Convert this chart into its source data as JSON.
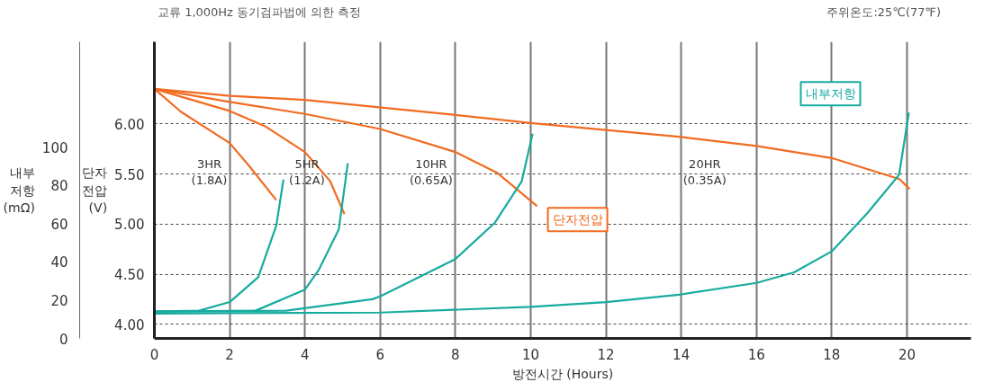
{
  "chart_data": {
    "type": "line",
    "title": "교류 1,000Hz 동기검파법에 의한 측정",
    "subtitle": "주위온도:25℃(77℉)",
    "xlabel": "방전시간 (Hours)",
    "ylabel": "단자\n전압\n(V)",
    "y2label": "내부\n저항\n(mΩ)",
    "xlim": [
      0,
      21.7
    ],
    "xticks": [
      0,
      2,
      4,
      6,
      8,
      10,
      12,
      14,
      16,
      18,
      20
    ],
    "ylim": [
      3.86,
      6.82
    ],
    "yticks": [
      {
        "value": 4,
        "label": "4.00"
      },
      {
        "value": 4.5,
        "label": "4.50"
      },
      {
        "value": 5,
        "label": "5.00"
      },
      {
        "value": 5.5,
        "label": "5.50"
      },
      {
        "value": 6,
        "label": "6.00"
      }
    ],
    "y2lim": [
      0,
      155
    ],
    "y2ticks": [
      0,
      20,
      40,
      60,
      80,
      100
    ],
    "grid": true,
    "line_style": "solid",
    "marker": "none",
    "series": [
      {
        "color": "#f26b21",
        "x": [
          0,
          0.71,
          2,
          2.52,
          3.24
        ],
        "values": [
          6.35,
          6.12,
          5.81,
          5.58,
          5.24
        ]
      },
      {
        "color": "#f26b21",
        "x": [
          0,
          2,
          2.93,
          4,
          4.67,
          5.05
        ],
        "values": [
          6.35,
          6.13,
          5.98,
          5.72,
          5.43,
          5.1
        ]
      },
      {
        "name": "단자전압",
        "color": "#f26b21",
        "x": [
          0,
          2,
          4,
          6,
          8,
          9.12,
          10.17
        ],
        "values": [
          6.35,
          6.22,
          6.1,
          5.95,
          5.72,
          5.51,
          5.18
        ]
      },
      {
        "color": "#f26b21",
        "x": [
          0,
          2,
          4,
          8,
          10,
          12,
          14,
          16,
          18,
          19.8,
          20.07
        ],
        "values": [
          6.35,
          6.28,
          6.24,
          6.09,
          6.01,
          5.94,
          5.87,
          5.78,
          5.66,
          5.45,
          5.35
        ]
      },
      {
        "color": "#17ab9f",
        "axis": "y2",
        "x": [
          0,
          1.19,
          2,
          2.76,
          3.24,
          3.43
        ],
        "values": [
          14,
          14.5,
          19,
          32,
          59,
          83
        ]
      },
      {
        "color": "#17ab9f",
        "axis": "y2",
        "x": [
          0,
          2.69,
          4,
          4.36,
          4.9,
          5.14
        ],
        "values": [
          14,
          14.5,
          25.5,
          35.5,
          57,
          91.5
        ]
      },
      {
        "color": "#17ab9f",
        "axis": "y2",
        "x": [
          0,
          3.5,
          5.79,
          6,
          8,
          9.05,
          9.76,
          10.05
        ],
        "values": [
          14,
          14.5,
          20.5,
          22,
          41.5,
          60.5,
          82,
          107
        ]
      },
      {
        "name": "내부저항",
        "color": "#17ab9f",
        "axis": "y2",
        "x": [
          0,
          6,
          10,
          12,
          14,
          16,
          17,
          18,
          18.95,
          19.79,
          20.05
        ],
        "values": [
          13,
          13.5,
          16.5,
          19,
          23,
          29,
          34.5,
          45.5,
          65.5,
          85.5,
          118
        ]
      }
    ],
    "annotations": [
      "3HR\n(1.8A)",
      "5HR\n(1.2A)",
      "10HR\n(0.65A)",
      "20HR\n(0.35A)"
    ]
  }
}
